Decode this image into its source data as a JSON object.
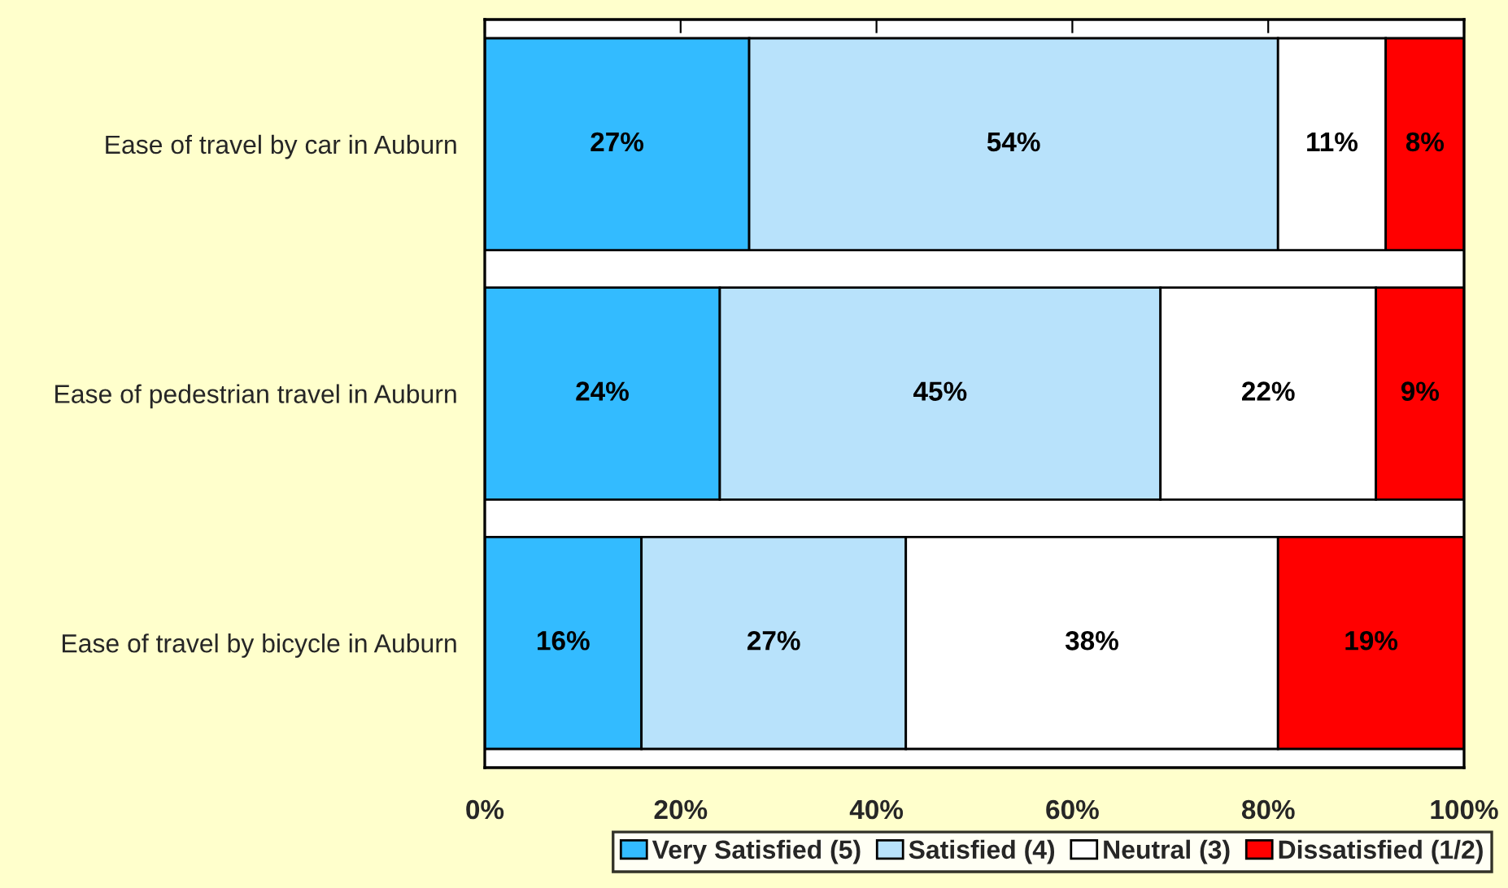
{
  "chart_data": {
    "type": "bar",
    "orientation": "horizontal",
    "stacked": true,
    "categories": [
      "Ease of travel by car in Auburn",
      "Ease of pedestrian travel in Auburn",
      "Ease of travel by bicycle in Auburn"
    ],
    "series": [
      {
        "name": "Very Satisfied (5)",
        "color": "#33bbff",
        "values": [
          27,
          24,
          16
        ],
        "value_labels": [
          "27%",
          "24%",
          "16%"
        ]
      },
      {
        "name": "Satisfied (4)",
        "color": "#b8e2fb",
        "values": [
          54,
          45,
          27
        ],
        "value_labels": [
          "54%",
          "45%",
          "27%"
        ]
      },
      {
        "name": "Neutral (3)",
        "color": "#ffffff",
        "values": [
          11,
          22,
          38
        ],
        "value_labels": [
          "11%",
          "22%",
          "38%"
        ]
      },
      {
        "name": "Dissatisfied (1/2)",
        "color": "#ff0000",
        "values": [
          8,
          9,
          19
        ],
        "value_labels": [
          "8%",
          "9%",
          "19%"
        ]
      }
    ],
    "xlim": [
      0,
      100
    ],
    "xticks": [
      {
        "value": 0,
        "label": "0%"
      },
      {
        "value": 20,
        "label": "20%"
      },
      {
        "value": 40,
        "label": "40%"
      },
      {
        "value": 60,
        "label": "60%"
      },
      {
        "value": 80,
        "label": "80%"
      },
      {
        "value": 100,
        "label": "100%"
      }
    ],
    "grid": false,
    "legend": "bottom"
  }
}
